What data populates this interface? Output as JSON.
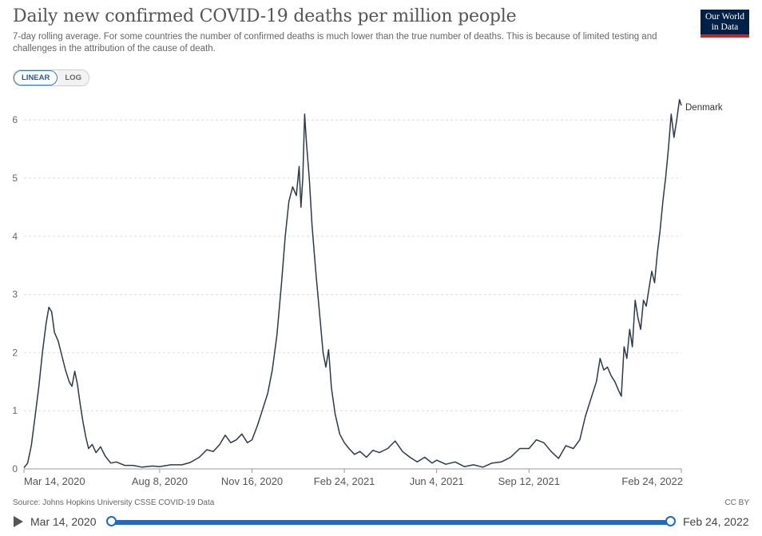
{
  "header": {
    "title": "Daily new confirmed COVID-19 deaths per million people",
    "subtitle": "7-day rolling average. For some countries the number of confirmed deaths is much lower than the true number of deaths. This is because of limited testing and challenges in the attribution of the cause of death.",
    "logo_line1": "Our World",
    "logo_line2": "in Data"
  },
  "scale_toggle": {
    "linear": "LINEAR",
    "log": "LOG",
    "active": "linear"
  },
  "chart_data": {
    "type": "line",
    "title": "Daily new confirmed COVID-19 deaths per million people",
    "xlabel": "",
    "ylabel": "",
    "ylim": [
      0,
      6.3
    ],
    "yticks": [
      0,
      1,
      2,
      3,
      4,
      5,
      6
    ],
    "xticks": [
      "Mar 14, 2020",
      "Aug 8, 2020",
      "Nov 16, 2020",
      "Feb 24, 2021",
      "Jun 4, 2021",
      "Sep 12, 2021",
      "Feb 24, 2022"
    ],
    "grid": "horizontal dashed",
    "series": [
      {
        "name": "Denmark",
        "color": "#2d3a4a",
        "points": [
          [
            "2020-03-14",
            0.02
          ],
          [
            "2020-03-18",
            0.1
          ],
          [
            "2020-03-22",
            0.4
          ],
          [
            "2020-03-26",
            0.9
          ],
          [
            "2020-03-30",
            1.4
          ],
          [
            "2020-04-03",
            2.0
          ],
          [
            "2020-04-07",
            2.5
          ],
          [
            "2020-04-10",
            2.78
          ],
          [
            "2020-04-13",
            2.7
          ],
          [
            "2020-04-16",
            2.35
          ],
          [
            "2020-04-20",
            2.2
          ],
          [
            "2020-04-24",
            1.95
          ],
          [
            "2020-04-28",
            1.7
          ],
          [
            "2020-05-02",
            1.5
          ],
          [
            "2020-05-05",
            1.42
          ],
          [
            "2020-05-08",
            1.68
          ],
          [
            "2020-05-11",
            1.45
          ],
          [
            "2020-05-14",
            1.1
          ],
          [
            "2020-05-17",
            0.8
          ],
          [
            "2020-05-20",
            0.55
          ],
          [
            "2020-05-23",
            0.35
          ],
          [
            "2020-05-27",
            0.42
          ],
          [
            "2020-05-31",
            0.28
          ],
          [
            "2020-06-05",
            0.38
          ],
          [
            "2020-06-10",
            0.22
          ],
          [
            "2020-06-16",
            0.1
          ],
          [
            "2020-06-22",
            0.12
          ],
          [
            "2020-07-01",
            0.06
          ],
          [
            "2020-07-10",
            0.06
          ],
          [
            "2020-07-20",
            0.03
          ],
          [
            "2020-07-31",
            0.05
          ],
          [
            "2020-08-08",
            0.04
          ],
          [
            "2020-08-20",
            0.07
          ],
          [
            "2020-09-01",
            0.07
          ],
          [
            "2020-09-10",
            0.11
          ],
          [
            "2020-09-20",
            0.2
          ],
          [
            "2020-09-28",
            0.33
          ],
          [
            "2020-10-05",
            0.3
          ],
          [
            "2020-10-12",
            0.42
          ],
          [
            "2020-10-18",
            0.58
          ],
          [
            "2020-10-24",
            0.45
          ],
          [
            "2020-10-30",
            0.5
          ],
          [
            "2020-11-05",
            0.6
          ],
          [
            "2020-11-11",
            0.45
          ],
          [
            "2020-11-16",
            0.5
          ],
          [
            "2020-11-22",
            0.75
          ],
          [
            "2020-11-28",
            1.05
          ],
          [
            "2020-12-03",
            1.3
          ],
          [
            "2020-12-08",
            1.7
          ],
          [
            "2020-12-13",
            2.3
          ],
          [
            "2020-12-18",
            3.2
          ],
          [
            "2020-12-22",
            4.0
          ],
          [
            "2020-12-26",
            4.6
          ],
          [
            "2020-12-30",
            4.85
          ],
          [
            "2021-01-03",
            4.7
          ],
          [
            "2021-01-06",
            5.2
          ],
          [
            "2021-01-08",
            4.5
          ],
          [
            "2021-01-10",
            5.0
          ],
          [
            "2021-01-12",
            6.1
          ],
          [
            "2021-01-14",
            5.6
          ],
          [
            "2021-01-17",
            5.0
          ],
          [
            "2021-01-20",
            4.2
          ],
          [
            "2021-01-24",
            3.4
          ],
          [
            "2021-01-28",
            2.7
          ],
          [
            "2021-02-01",
            2.0
          ],
          [
            "2021-02-04",
            1.75
          ],
          [
            "2021-02-07",
            2.05
          ],
          [
            "2021-02-10",
            1.4
          ],
          [
            "2021-02-14",
            0.95
          ],
          [
            "2021-02-19",
            0.6
          ],
          [
            "2021-02-24",
            0.45
          ],
          [
            "2021-03-01",
            0.35
          ],
          [
            "2021-03-07",
            0.25
          ],
          [
            "2021-03-13",
            0.3
          ],
          [
            "2021-03-20",
            0.2
          ],
          [
            "2021-03-27",
            0.32
          ],
          [
            "2021-04-03",
            0.28
          ],
          [
            "2021-04-12",
            0.35
          ],
          [
            "2021-04-20",
            0.48
          ],
          [
            "2021-04-28",
            0.3
          ],
          [
            "2021-05-06",
            0.2
          ],
          [
            "2021-05-14",
            0.12
          ],
          [
            "2021-05-22",
            0.2
          ],
          [
            "2021-05-30",
            0.1
          ],
          [
            "2021-06-04",
            0.15
          ],
          [
            "2021-06-14",
            0.08
          ],
          [
            "2021-06-24",
            0.12
          ],
          [
            "2021-07-04",
            0.04
          ],
          [
            "2021-07-14",
            0.07
          ],
          [
            "2021-07-24",
            0.03
          ],
          [
            "2021-08-03",
            0.1
          ],
          [
            "2021-08-13",
            0.12
          ],
          [
            "2021-08-23",
            0.2
          ],
          [
            "2021-09-02",
            0.35
          ],
          [
            "2021-09-12",
            0.35
          ],
          [
            "2021-09-20",
            0.5
          ],
          [
            "2021-09-28",
            0.45
          ],
          [
            "2021-10-06",
            0.3
          ],
          [
            "2021-10-14",
            0.18
          ],
          [
            "2021-10-22",
            0.4
          ],
          [
            "2021-10-30",
            0.35
          ],
          [
            "2021-11-06",
            0.5
          ],
          [
            "2021-11-12",
            0.9
          ],
          [
            "2021-11-18",
            1.2
          ],
          [
            "2021-11-24",
            1.5
          ],
          [
            "2021-11-28",
            1.9
          ],
          [
            "2021-12-02",
            1.7
          ],
          [
            "2021-12-06",
            1.75
          ],
          [
            "2021-12-10",
            1.6
          ],
          [
            "2021-12-14",
            1.5
          ],
          [
            "2021-12-18",
            1.35
          ],
          [
            "2021-12-21",
            1.25
          ],
          [
            "2021-12-24",
            2.1
          ],
          [
            "2021-12-27",
            1.9
          ],
          [
            "2021-12-30",
            2.4
          ],
          [
            "2022-01-02",
            2.1
          ],
          [
            "2022-01-05",
            2.9
          ],
          [
            "2022-01-08",
            2.6
          ],
          [
            "2022-01-11",
            2.4
          ],
          [
            "2022-01-14",
            2.9
          ],
          [
            "2022-01-17",
            2.8
          ],
          [
            "2022-01-20",
            3.1
          ],
          [
            "2022-01-23",
            3.4
          ],
          [
            "2022-01-26",
            3.2
          ],
          [
            "2022-01-29",
            3.7
          ],
          [
            "2022-02-01",
            4.1
          ],
          [
            "2022-02-04",
            4.6
          ],
          [
            "2022-02-07",
            5.0
          ],
          [
            "2022-02-10",
            5.5
          ],
          [
            "2022-02-13",
            6.1
          ],
          [
            "2022-02-16",
            5.7
          ],
          [
            "2022-02-19",
            6.0
          ],
          [
            "2022-02-22",
            6.35
          ],
          [
            "2022-02-24",
            6.25
          ]
        ]
      }
    ],
    "series_label": "Denmark"
  },
  "footer": {
    "source": "Source: Johns Hopkins University CSSE COVID-19 Data",
    "license": "CC BY"
  },
  "timeline": {
    "start_label": "Mar 14, 2020",
    "end_label": "Feb 24, 2022",
    "range_start": 0,
    "range_end": 1
  }
}
